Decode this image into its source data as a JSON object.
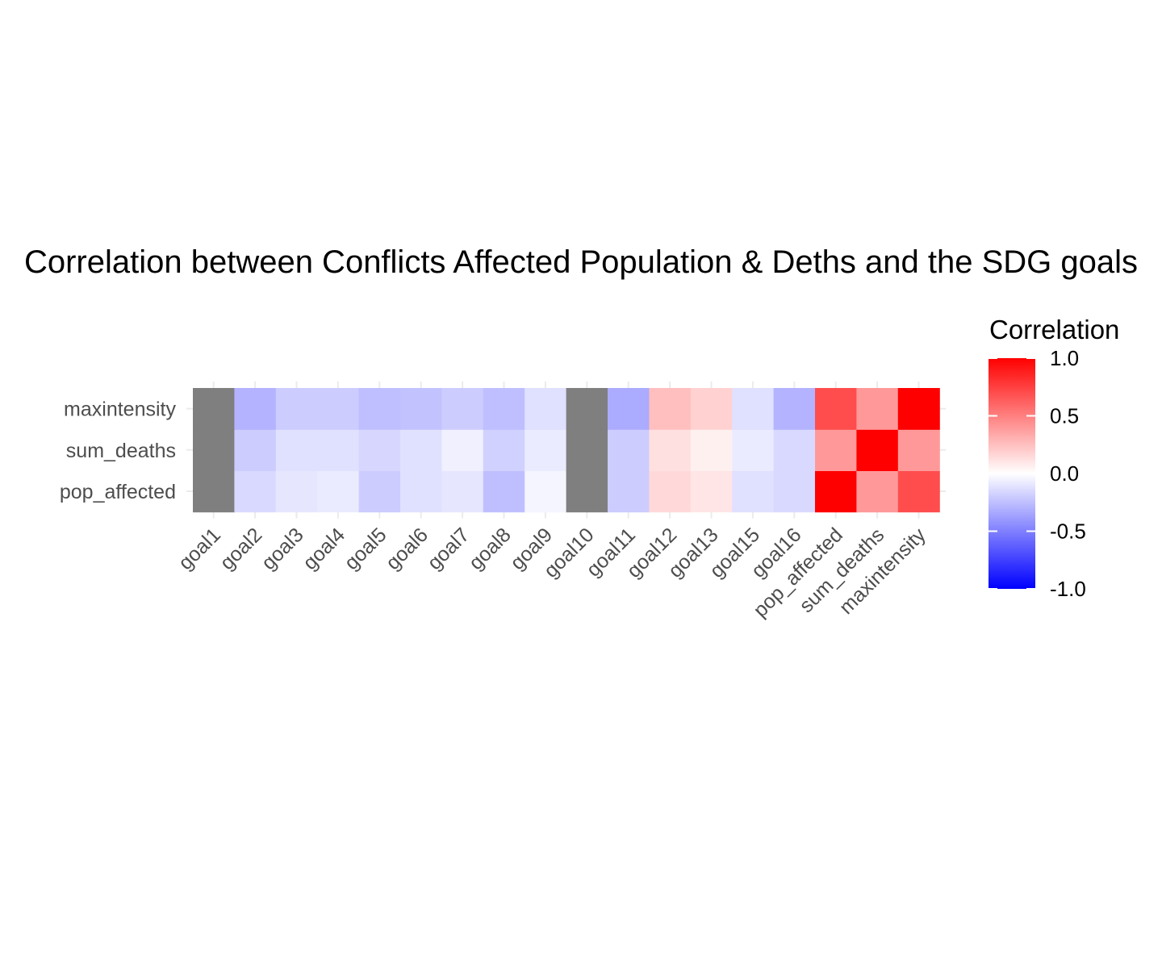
{
  "chart_data": {
    "type": "heatmap",
    "title": "Correlation between Conflicts Affected Population & Deths and the SDG goals",
    "xlabel": "",
    "ylabel": "",
    "x_categories": [
      "goal1",
      "goal2",
      "goal3",
      "goal4",
      "goal5",
      "goal6",
      "goal7",
      "goal8",
      "goal9",
      "goal10",
      "goal11",
      "goal12",
      "goal13",
      "goal15",
      "goal16",
      "pop_affected",
      "sum_deaths",
      "maxintensity"
    ],
    "y_categories": [
      "pop_affected",
      "sum_deaths",
      "maxintensity"
    ],
    "values": [
      [
        null,
        -0.15,
        -0.1,
        -0.08,
        -0.2,
        -0.12,
        -0.1,
        -0.25,
        -0.04,
        null,
        -0.2,
        0.15,
        0.1,
        -0.12,
        -0.15,
        1.0,
        0.4,
        0.7
      ],
      [
        null,
        -0.2,
        -0.12,
        -0.12,
        -0.16,
        -0.12,
        -0.06,
        -0.18,
        -0.08,
        null,
        -0.2,
        0.12,
        0.06,
        -0.08,
        -0.15,
        0.4,
        1.0,
        0.4
      ],
      [
        null,
        -0.3,
        -0.2,
        -0.2,
        -0.25,
        -0.24,
        -0.2,
        -0.25,
        -0.12,
        null,
        -0.33,
        0.25,
        0.18,
        -0.12,
        -0.3,
        0.7,
        0.4,
        1.0
      ]
    ],
    "na_color": "#7f7f7f",
    "color_scale": {
      "low": "#0000ff",
      "mid": "#ffffff",
      "high": "#ff0000",
      "domain": [
        -1.0,
        1.0
      ]
    },
    "legend": {
      "title": "Correlation",
      "position": "right",
      "tick_values": [
        1.0,
        0.5,
        0.0,
        -0.5,
        -1.0
      ],
      "tick_labels": [
        "1.0",
        "0.5",
        "0.0",
        "-0.5",
        "-1.0"
      ]
    },
    "grid": true
  }
}
